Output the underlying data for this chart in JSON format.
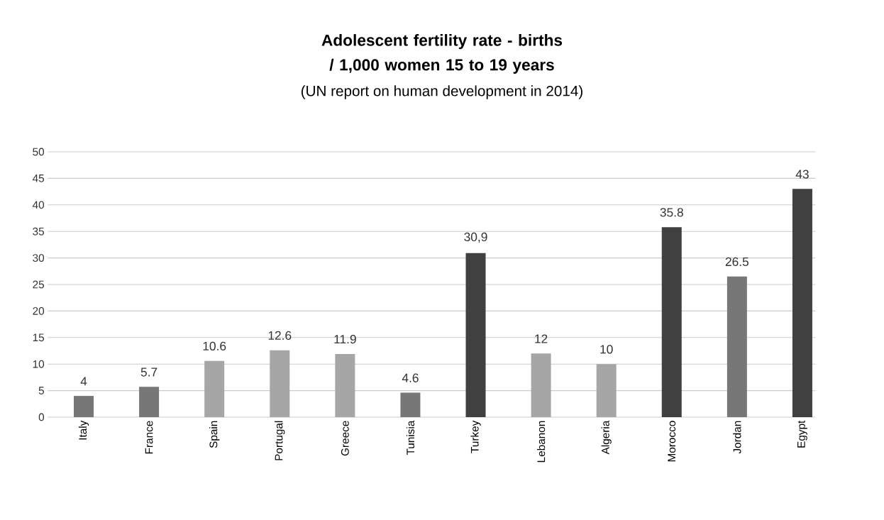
{
  "chart_data": {
    "type": "bar",
    "title": "Adolescent fertility rate - births / 1,000 women 15 to 19 years",
    "subtitle": "(UN report on human development in 2014)",
    "categories": [
      "Italy",
      "France",
      "Spain",
      "Portugal",
      "Greece",
      "Tunisia",
      "Turkey",
      "Lebanon",
      "Algeria",
      "Morocco",
      "Jordan",
      "Egypt"
    ],
    "values": [
      4,
      5.7,
      10.6,
      12.6,
      11.9,
      4.6,
      30.9,
      12,
      10,
      35.8,
      26.5,
      43
    ],
    "colors": [
      "#777777",
      "#777777",
      "#a6a6a6",
      "#a6a6a6",
      "#a6a6a6",
      "#777777",
      "#404040",
      "#a6a6a6",
      "#a6a6a6",
      "#404040",
      "#777777",
      "#404040"
    ],
    "value_labels": [
      "4",
      "5.7",
      "10.6",
      "12.6",
      "11.9",
      "4.6",
      "30,9",
      "12",
      "10",
      "35.8",
      "26.5",
      "43"
    ],
    "ylim": [
      0,
      50
    ],
    "yticks": [
      0,
      5,
      10,
      15,
      20,
      25,
      30,
      35,
      40,
      45,
      50
    ],
    "grid": "y"
  }
}
